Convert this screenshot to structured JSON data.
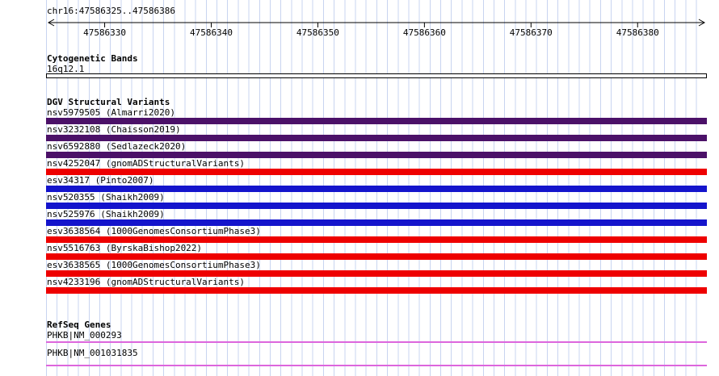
{
  "colors": {
    "grid": "#c8d4f0",
    "purple": "#4b1168",
    "red": "#ee0000",
    "blue": "#1414cc",
    "magenta": "#dd66dd",
    "band_fill": "#ffffff"
  },
  "ruler": {
    "region": "chr16:47586325..47586386",
    "start": 47586325,
    "end": 47586386,
    "tick_values": [
      47586330,
      47586340,
      47586350,
      47586360,
      47586370,
      47586380
    ]
  },
  "tracks": {
    "cytobands": {
      "title": "Cytogenetic Bands",
      "band": "16q12.1"
    },
    "dgv": {
      "title": "DGV Structural Variants",
      "variants": [
        {
          "label": "nsv5979505 (Almarri2020)",
          "color_key": "purple"
        },
        {
          "label": "nsv3232108 (Chaisson2019)",
          "color_key": "purple"
        },
        {
          "label": "nsv6592880 (Sedlazeck2020)",
          "color_key": "purple"
        },
        {
          "label": "nsv4252047 (gnomADStructuralVariants)",
          "color_key": "red"
        },
        {
          "label": "esv34317 (Pinto2007)",
          "color_key": "blue"
        },
        {
          "label": "nsv520355 (Shaikh2009)",
          "color_key": "blue"
        },
        {
          "label": "nsv525976 (Shaikh2009)",
          "color_key": "blue"
        },
        {
          "label": "esv3638564 (1000GenomesConsortiumPhase3)",
          "color_key": "red"
        },
        {
          "label": "nsv5516763 (ByrskaBishop2022)",
          "color_key": "red"
        },
        {
          "label": "esv3638565 (1000GenomesConsortiumPhase3)",
          "color_key": "red"
        },
        {
          "label": "nsv4233196 (gnomADStructuralVariants)",
          "color_key": "red"
        }
      ]
    },
    "refseq": {
      "title": "RefSeq Genes",
      "genes": [
        {
          "label": "PHKB|NM_000293"
        },
        {
          "label": "PHKB|NM_001031835"
        }
      ]
    }
  }
}
